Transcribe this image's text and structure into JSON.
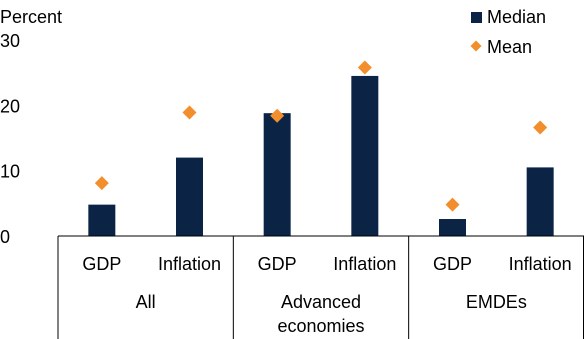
{
  "chart_data": {
    "type": "bar",
    "ylabel": "Percent",
    "ylim": [
      0,
      30
    ],
    "yticks": [
      0,
      10,
      20,
      30
    ],
    "grid": false,
    "legend_position": "top-right",
    "categories": [
      "GDP",
      "Inflation",
      "GDP",
      "Inflation",
      "GDP",
      "Inflation"
    ],
    "groups": [
      {
        "label_lines": [
          "All"
        ],
        "span": 2
      },
      {
        "label_lines": [
          "Advanced",
          "economies"
        ],
        "span": 2
      },
      {
        "label_lines": [
          "EMDEs"
        ],
        "span": 2
      }
    ],
    "series": [
      {
        "name": "Median",
        "mark": "bar",
        "color": "#0b2446",
        "values": [
          4.8,
          12.0,
          18.8,
          24.5,
          2.6,
          10.5
        ]
      },
      {
        "name": "Mean",
        "mark": "diamond",
        "color": "#f28e2b",
        "values": [
          8.1,
          18.9,
          18.4,
          25.8,
          4.8,
          16.6
        ]
      }
    ]
  }
}
